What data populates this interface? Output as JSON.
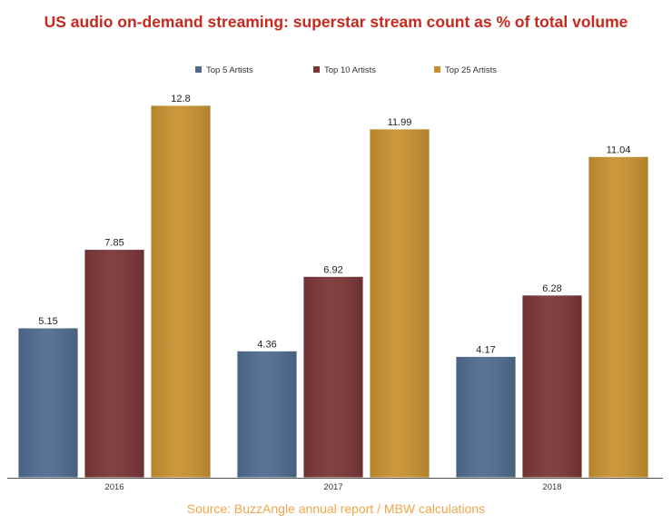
{
  "colors": {
    "title": "#c8281e",
    "source": "#f0a64a",
    "axis": "#555555",
    "label": "#222222"
  },
  "chart_data": {
    "type": "bar",
    "title": "US audio on-demand streaming: superstar stream count as % of total volume",
    "categories": [
      "2016",
      "2017",
      "2018"
    ],
    "series": [
      {
        "name": "Top 5 Artists",
        "color": "#4f6b8f",
        "values": [
          5.15,
          4.36,
          4.17
        ],
        "labels": [
          "5.15",
          "4.36",
          "4.17"
        ]
      },
      {
        "name": "Top 10 Artists",
        "color": "#7a3536",
        "values": [
          7.85,
          6.92,
          6.28
        ],
        "labels": [
          "7.85",
          "6.92",
          "6.28"
        ]
      },
      {
        "name": "Top 25 Artists",
        "color": "#c8912f",
        "values": [
          12.8,
          11.99,
          11.04
        ],
        "labels": [
          "12.8",
          "11.99",
          "11.04"
        ]
      }
    ],
    "xlabel": "",
    "ylabel": "",
    "ylim": [
      0,
      12.8
    ],
    "grid": false,
    "legend": "top-center",
    "source": "Source: BuzzAngle annual report / MBW calculations"
  }
}
